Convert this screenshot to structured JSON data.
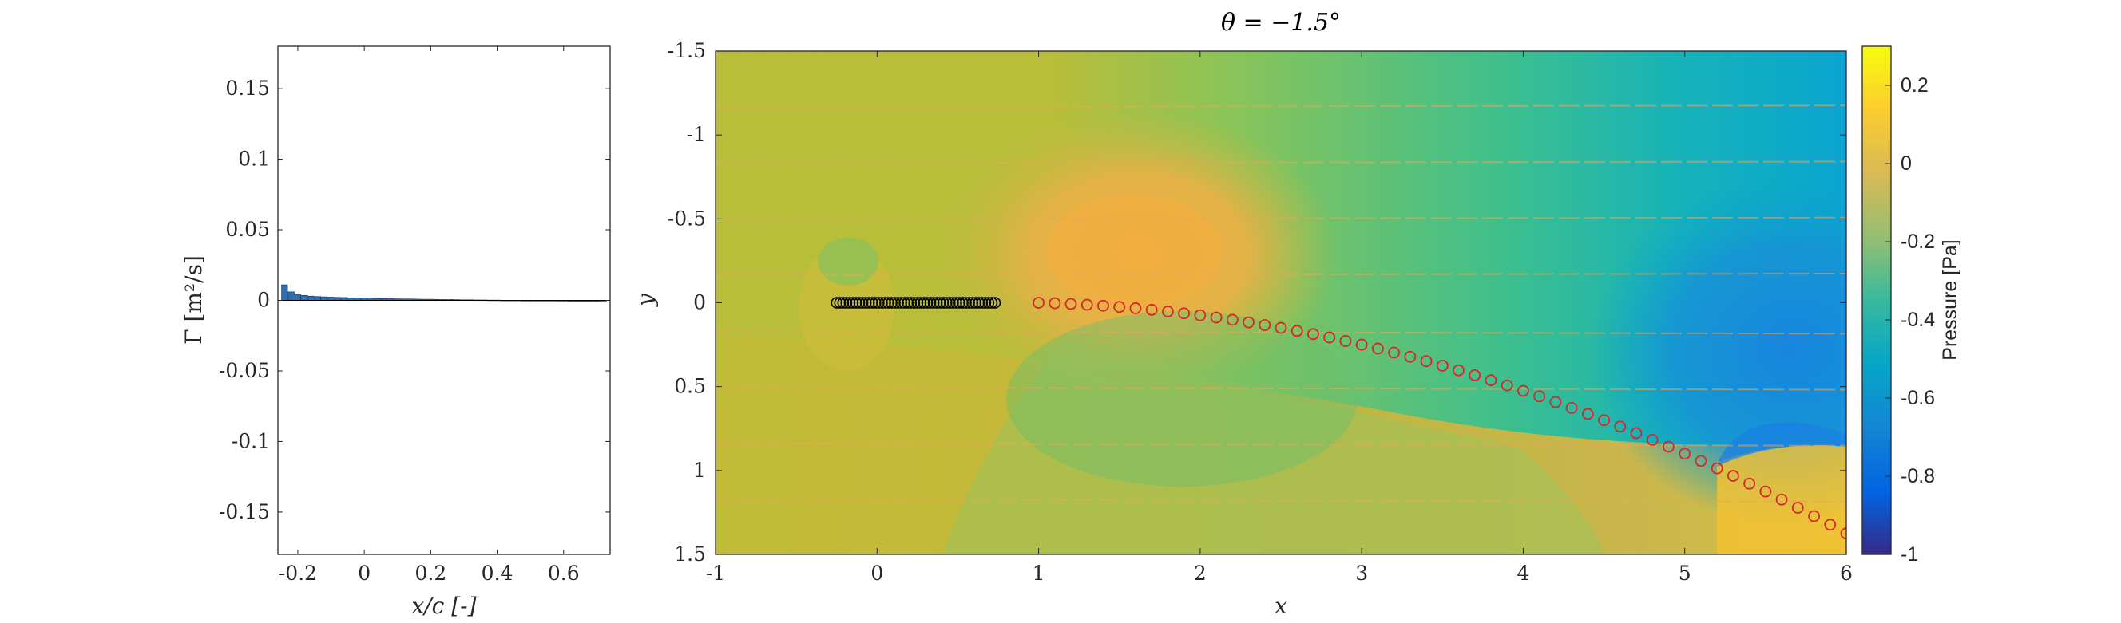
{
  "chart_data": [
    {
      "type": "bar",
      "xlabel": "x/c [-]",
      "ylabel": "Γ [m²/s]",
      "xlim": [
        -0.26,
        0.74
      ],
      "ylim": [
        -0.18,
        0.18
      ],
      "x_ticks": [
        "-0.2",
        "0",
        "0.2",
        "0.4",
        "0.6"
      ],
      "x_tick_values": [
        -0.2,
        0,
        0.2,
        0.4,
        0.6
      ],
      "y_ticks": [
        "0.15",
        "0.1",
        "0.05",
        "0",
        "-0.05",
        "-0.1",
        "-0.15"
      ],
      "y_tick_values": [
        0.15,
        0.1,
        0.05,
        0,
        -0.05,
        -0.1,
        -0.15
      ],
      "bar_color": "#2b6fb6",
      "x": [
        -0.24,
        -0.22,
        -0.2,
        -0.18,
        -0.16,
        -0.14,
        -0.12,
        -0.1,
        -0.08,
        -0.06,
        -0.04,
        -0.02,
        0.0,
        0.02,
        0.04,
        0.06,
        0.08,
        0.1,
        0.12,
        0.14,
        0.16,
        0.18,
        0.2,
        0.22,
        0.24,
        0.26,
        0.28,
        0.3,
        0.32,
        0.34,
        0.36,
        0.38,
        0.4,
        0.42,
        0.44,
        0.46,
        0.48,
        0.5,
        0.52,
        0.54,
        0.56,
        0.58,
        0.6,
        0.62,
        0.64,
        0.66,
        0.68,
        0.7,
        0.72
      ],
      "values": [
        0.011,
        0.006,
        0.004,
        0.0035,
        0.003,
        0.0027,
        0.0025,
        0.0023,
        0.0021,
        0.002,
        0.0018,
        0.0017,
        0.0016,
        0.0015,
        0.0014,
        0.0013,
        0.0012,
        0.0011,
        0.001,
        0.001,
        0.0009,
        0.0008,
        0.0008,
        0.0007,
        0.0006,
        0.0006,
        0.0005,
        0.0004,
        0.0004,
        0.0003,
        0.0003,
        0.0002,
        0.0002,
        0.0001,
        0.0001,
        0.0001,
        0.0,
        0.0,
        0.0,
        -0.0003,
        -0.0004,
        -0.0005,
        -0.0005,
        -0.0006,
        -0.0006,
        -0.0006,
        -0.0006,
        -0.0006,
        -0.0005
      ]
    },
    {
      "type": "heatmap",
      "title": "θ = −1.5°",
      "xlabel": "x",
      "ylabel": "y",
      "xlim": [
        -1,
        6
      ],
      "ylim": [
        -1.5,
        1.5
      ],
      "y_reversed": true,
      "x_ticks": [
        "-1",
        "0",
        "1",
        "2",
        "3",
        "4",
        "5",
        "6"
      ],
      "x_tick_values": [
        -1,
        0,
        1,
        2,
        3,
        4,
        5,
        6
      ],
      "y_ticks": [
        "-1.5",
        "-1",
        "-0.5",
        "0",
        "0.5",
        "1",
        "1.5"
      ],
      "y_tick_values": [
        -1.5,
        -1,
        -0.5,
        0,
        0.5,
        1,
        1.5
      ],
      "colorbar": {
        "label": "Pressure [Pa]",
        "range": [
          -1,
          0.3
        ],
        "ticks": [
          "0.2",
          "0",
          "-0.2",
          "-0.4",
          "-0.6",
          "-0.8",
          "-1"
        ],
        "tick_values": [
          0.2,
          0,
          -0.2,
          -0.4,
          -0.6,
          -0.8,
          -1
        ],
        "colormap": "parula"
      },
      "plate_markers": {
        "color": "#000000",
        "y": 0,
        "x": [
          -0.25,
          -0.23,
          -0.21,
          -0.19,
          -0.17,
          -0.15,
          -0.13,
          -0.11,
          -0.09,
          -0.07,
          -0.05,
          -0.03,
          -0.01,
          0.01,
          0.03,
          0.05,
          0.07,
          0.09,
          0.11,
          0.13,
          0.15,
          0.17,
          0.19,
          0.21,
          0.23,
          0.25,
          0.27,
          0.29,
          0.31,
          0.33,
          0.35,
          0.37,
          0.39,
          0.41,
          0.43,
          0.45,
          0.47,
          0.49,
          0.51,
          0.53,
          0.55,
          0.57,
          0.59,
          0.61,
          0.63,
          0.65,
          0.67,
          0.69,
          0.71,
          0.73
        ]
      },
      "wake_markers": {
        "color": "#d62728",
        "x": [
          1.0,
          1.1,
          1.2,
          1.3,
          1.4,
          1.5,
          1.6,
          1.7,
          1.8,
          1.9,
          2.0,
          2.1,
          2.2,
          2.3,
          2.4,
          2.5,
          2.6,
          2.7,
          2.8,
          2.9,
          3.0,
          3.1,
          3.2,
          3.3,
          3.4,
          3.5,
          3.6,
          3.7,
          3.8,
          3.9,
          4.0,
          4.1,
          4.2,
          4.3,
          4.4,
          4.5,
          4.6,
          4.7,
          4.8,
          4.9,
          5.0,
          5.1,
          5.2,
          5.3,
          5.4,
          5.5,
          5.6,
          5.7,
          5.8,
          5.9,
          6.0
        ],
        "y": [
          0.0,
          0.003,
          0.007,
          0.012,
          0.018,
          0.025,
          0.033,
          0.042,
          0.052,
          0.063,
          0.075,
          0.088,
          0.102,
          0.117,
          0.133,
          0.15,
          0.168,
          0.187,
          0.207,
          0.228,
          0.25,
          0.273,
          0.297,
          0.322,
          0.348,
          0.375,
          0.403,
          0.432,
          0.462,
          0.493,
          0.525,
          0.558,
          0.592,
          0.627,
          0.663,
          0.7,
          0.738,
          0.777,
          0.817,
          0.858,
          0.9,
          0.943,
          0.987,
          1.032,
          1.078,
          1.125,
          1.173,
          1.222,
          1.272,
          1.323,
          1.375
        ]
      }
    }
  ]
}
